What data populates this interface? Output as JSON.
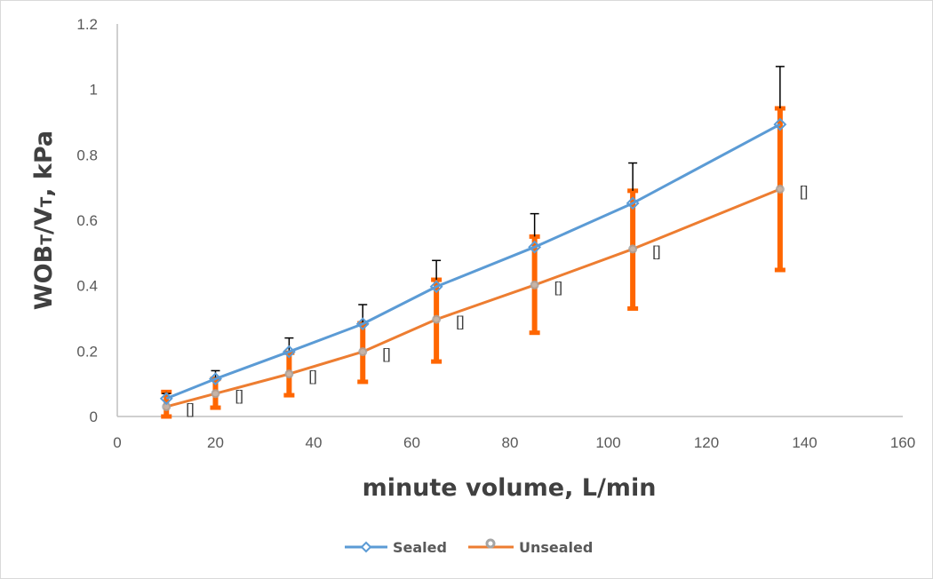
{
  "chart_data": {
    "type": "line",
    "title": "",
    "xlabel": "minute volume, L/min",
    "ylabel_main": "WOB",
    "ylabel_sub1": "T",
    "ylabel_mid": "/V",
    "ylabel_sub2": "T",
    "ylabel_tail": ", kPa",
    "xlim": [
      0,
      160
    ],
    "ylim": [
      0,
      1.2
    ],
    "xticks": [
      0,
      20,
      40,
      60,
      80,
      100,
      120,
      140,
      160
    ],
    "xtick_labels": [
      "0",
      "20",
      "40",
      "60",
      "80",
      "100",
      "120",
      "140",
      "160"
    ],
    "yticks": [
      0,
      0.2,
      0.4,
      0.6,
      0.8,
      1.0,
      1.2
    ],
    "ytick_labels": [
      "0",
      "0.2",
      "0.4",
      "0.6",
      "0.8",
      "1",
      "1.2"
    ],
    "grid": false,
    "legend_position": "bottom",
    "x": [
      10,
      20,
      35,
      50,
      65,
      85,
      105,
      135
    ],
    "series": [
      {
        "name": "Sealed",
        "color": "#5B9BD5",
        "marker": "diamond",
        "values": [
          0.055,
          0.115,
          0.198,
          0.283,
          0.397,
          0.518,
          0.652,
          0.893
        ],
        "error_upper": [
          0.07,
          0.14,
          0.24,
          0.342,
          0.477,
          0.62,
          0.775,
          1.07
        ],
        "error_color": "#000000"
      },
      {
        "name": "Unsealed",
        "color": "#ED7D31",
        "marker": "circle",
        "marker_color": "#A5A5A5",
        "values": [
          0.03,
          0.07,
          0.13,
          0.198,
          0.297,
          0.402,
          0.512,
          0.695
        ],
        "error_upper": [
          0.075,
          0.115,
          0.195,
          0.285,
          0.418,
          0.55,
          0.69,
          0.942
        ],
        "error_lower": [
          0.0,
          0.027,
          0.065,
          0.106,
          0.168,
          0.256,
          0.33,
          0.448
        ],
        "error_color": "#FF6600",
        "data_labels": [
          "[]",
          "[]",
          "[]",
          "[]",
          "[]",
          "[]",
          "[]",
          "[]"
        ]
      }
    ]
  }
}
